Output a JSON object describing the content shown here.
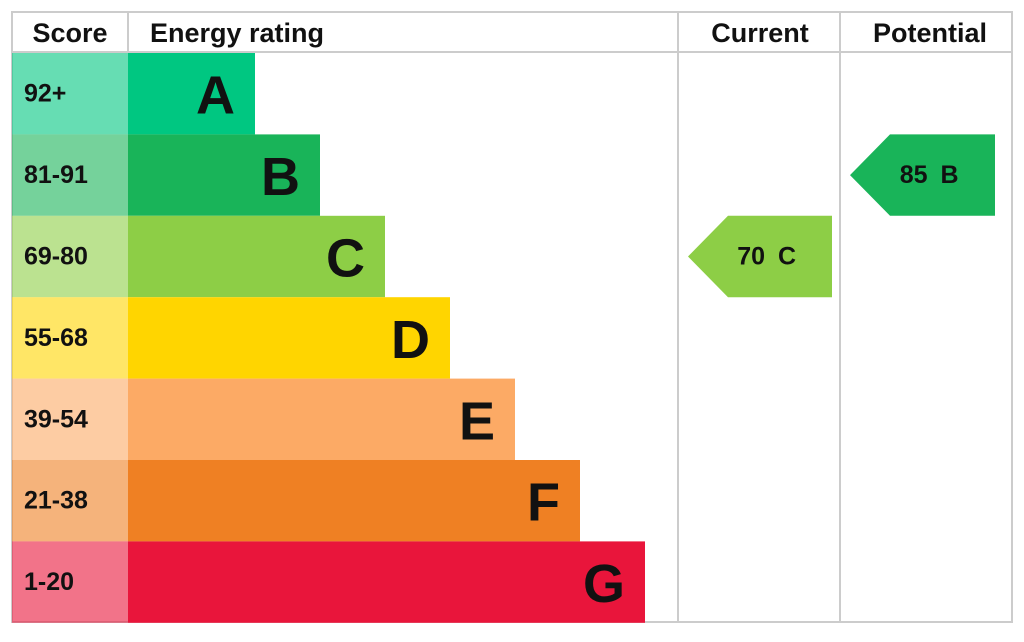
{
  "header": {
    "score": "Score",
    "rating": "Energy rating",
    "current": "Current",
    "potential": "Potential"
  },
  "bands": [
    {
      "score": "92+",
      "letter": "A",
      "color": "#00c781"
    },
    {
      "score": "81-91",
      "letter": "B",
      "color": "#19b459"
    },
    {
      "score": "69-80",
      "letter": "C",
      "color": "#8dce46"
    },
    {
      "score": "55-68",
      "letter": "D",
      "color": "#ffd500"
    },
    {
      "score": "39-54",
      "letter": "E",
      "color": "#fcaa65"
    },
    {
      "score": "21-38",
      "letter": "F",
      "color": "#ef8023"
    },
    {
      "score": "1-20",
      "letter": "G",
      "color": "#e9153b"
    }
  ],
  "current": {
    "value": 70,
    "letter": "C"
  },
  "potential": {
    "value": 85,
    "letter": "B"
  }
}
